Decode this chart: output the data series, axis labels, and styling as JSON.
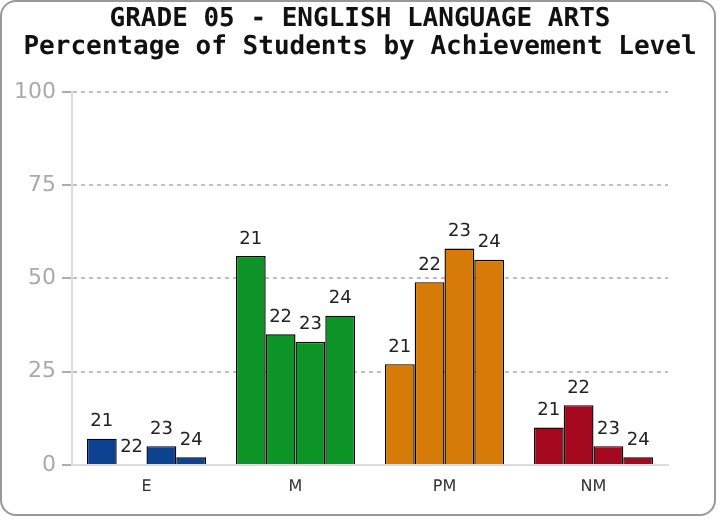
{
  "chart_data": {
    "type": "bar",
    "title": "GRADE 05 - ENGLISH LANGUAGE ARTS",
    "subtitle": "Percentage of Students by Achievement Level",
    "categories": [
      "E",
      "M",
      "PM",
      "NM"
    ],
    "series": [
      {
        "name": "21",
        "colors": [
          "#0d4290",
          "#0c9426",
          "#d67a08",
          "#a4081e"
        ],
        "values": [
          7,
          56,
          27,
          10
        ]
      },
      {
        "name": "22",
        "colors": [
          "#0d4290",
          "#0c9426",
          "#d67a08",
          "#a4081e"
        ],
        "values": [
          0,
          35,
          49,
          16
        ]
      },
      {
        "name": "23",
        "colors": [
          "#0d4290",
          "#0c9426",
          "#d67a08",
          "#a4081e"
        ],
        "values": [
          5,
          33,
          58,
          5
        ]
      },
      {
        "name": "24",
        "colors": [
          "#0d4290",
          "#0c9426",
          "#d67a08",
          "#a4081e"
        ],
        "values": [
          2,
          40,
          55,
          2
        ]
      }
    ],
    "ylim": [
      0,
      100
    ],
    "yticks": [
      0,
      25,
      50,
      75,
      100
    ],
    "grid": "y",
    "legend": false
  }
}
